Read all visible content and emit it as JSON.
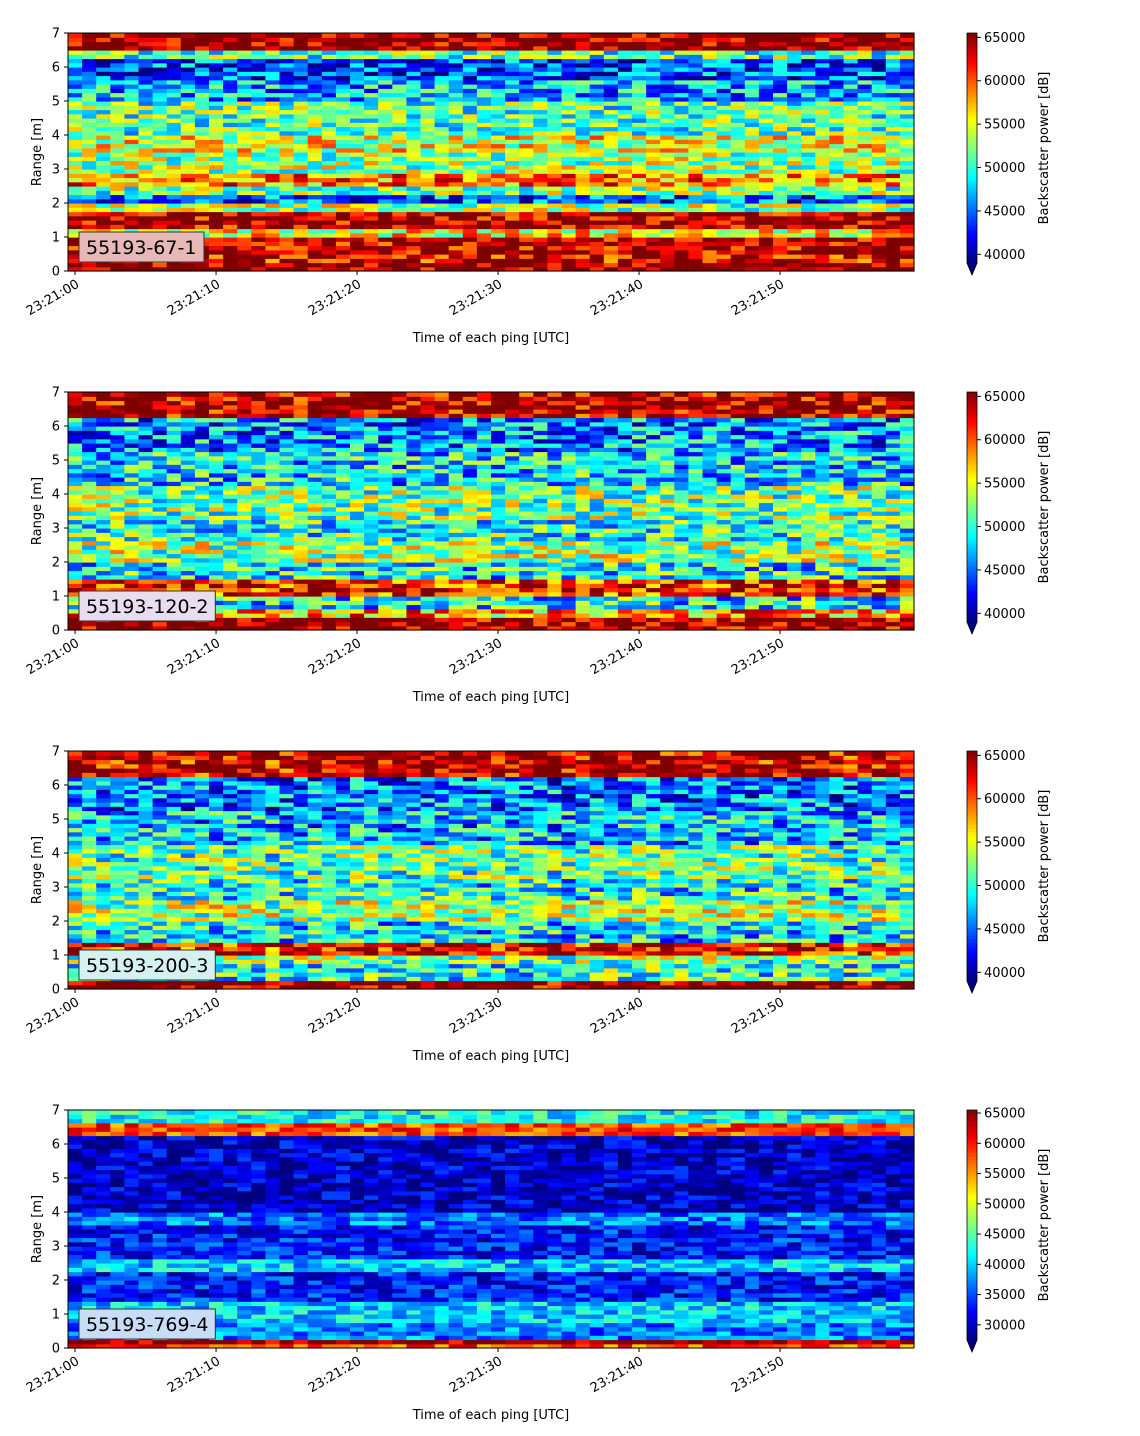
{
  "chart_data": [
    {
      "type": "heatmap",
      "label": "55193-67-1",
      "label_bg": "#e6b8b8",
      "xlabel": "Time of each ping [UTC]",
      "ylabel": "Range [m]",
      "xticks": [
        "23:21:00",
        "23:21:10",
        "23:21:20",
        "23:21:30",
        "23:21:40",
        "23:21:50"
      ],
      "yticks": [
        0,
        1,
        2,
        3,
        4,
        5,
        6,
        7
      ],
      "xlim_seconds": [
        -0.5,
        59.5
      ],
      "ylim": [
        0,
        7
      ],
      "colorbar": {
        "label": "Backscatter power [dB]",
        "ticks": [
          40000,
          45000,
          50000,
          55000,
          60000,
          65000
        ],
        "vmin": 39000,
        "vmax": 65500,
        "extend": "min",
        "cmap": "jet"
      },
      "bands": [
        {
          "y": [
            0.0,
            0.25
          ],
          "v": 65500
        },
        {
          "y": [
            0.25,
            0.5
          ],
          "v": 63000
        },
        {
          "y": [
            0.5,
            1.05
          ],
          "v": 64500
        },
        {
          "y": [
            1.05,
            1.25
          ],
          "v": 56000
        },
        {
          "y": [
            1.25,
            1.8
          ],
          "v": 64500
        },
        {
          "y": [
            1.8,
            2.05
          ],
          "v": 53000
        },
        {
          "y": [
            2.05,
            2.3
          ],
          "v": 45000
        },
        {
          "y": [
            2.3,
            2.55
          ],
          "v": 52000
        },
        {
          "y": [
            2.55,
            2.9
          ],
          "v": 59000
        },
        {
          "y": [
            2.9,
            3.5
          ],
          "v": 53000
        },
        {
          "y": [
            3.5,
            4.0
          ],
          "v": 55000
        },
        {
          "y": [
            4.0,
            5.0
          ],
          "v": 51000
        },
        {
          "y": [
            5.0,
            5.6
          ],
          "v": 47000
        },
        {
          "y": [
            5.6,
            6.3
          ],
          "v": 44000
        },
        {
          "y": [
            6.3,
            6.5
          ],
          "v": 51000
        },
        {
          "y": [
            6.5,
            7.0
          ],
          "v": 65500
        }
      ],
      "noise": 6000
    },
    {
      "type": "heatmap",
      "label": "55193-120-2",
      "label_bg": "#e8dcef",
      "xlabel": "Time of each ping [UTC]",
      "ylabel": "Range [m]",
      "xticks": [
        "23:21:00",
        "23:21:10",
        "23:21:20",
        "23:21:30",
        "23:21:40",
        "23:21:50"
      ],
      "yticks": [
        0,
        1,
        2,
        3,
        4,
        5,
        6,
        7
      ],
      "xlim_seconds": [
        -0.5,
        59.5
      ],
      "ylim": [
        0,
        7
      ],
      "colorbar": {
        "label": "Backscatter power [dB]",
        "ticks": [
          40000,
          45000,
          50000,
          55000,
          60000,
          65000
        ],
        "vmin": 39000,
        "vmax": 65500,
        "extend": "min",
        "cmap": "jet"
      },
      "bands": [
        {
          "y": [
            0.0,
            0.35
          ],
          "v": 65500
        },
        {
          "y": [
            0.35,
            0.6
          ],
          "v": 58000
        },
        {
          "y": [
            0.6,
            1.0
          ],
          "v": 49000
        },
        {
          "y": [
            1.0,
            1.5
          ],
          "v": 62000
        },
        {
          "y": [
            1.5,
            2.0
          ],
          "v": 49000
        },
        {
          "y": [
            2.0,
            2.6
          ],
          "v": 53000
        },
        {
          "y": [
            2.6,
            3.2
          ],
          "v": 50000
        },
        {
          "y": [
            3.2,
            4.2
          ],
          "v": 52000
        },
        {
          "y": [
            4.2,
            5.2
          ],
          "v": 48000
        },
        {
          "y": [
            5.2,
            6.3
          ],
          "v": 46000
        },
        {
          "y": [
            6.3,
            7.0
          ],
          "v": 64500
        }
      ],
      "noise": 6500
    },
    {
      "type": "heatmap",
      "label": "55193-200-3",
      "label_bg": "#d4f1ef",
      "xlabel": "Time of each ping [UTC]",
      "ylabel": "Range [m]",
      "xticks": [
        "23:21:00",
        "23:21:10",
        "23:21:20",
        "23:21:30",
        "23:21:40",
        "23:21:50"
      ],
      "yticks": [
        0,
        1,
        2,
        3,
        4,
        5,
        6,
        7
      ],
      "xlim_seconds": [
        -0.5,
        59.5
      ],
      "ylim": [
        0,
        7
      ],
      "colorbar": {
        "label": "Backscatter power [dB]",
        "ticks": [
          40000,
          45000,
          50000,
          55000,
          60000,
          65000
        ],
        "vmin": 39000,
        "vmax": 65500,
        "extend": "min",
        "cmap": "jet"
      },
      "bands": [
        {
          "y": [
            0.0,
            0.3
          ],
          "v": 65500
        },
        {
          "y": [
            0.3,
            0.7
          ],
          "v": 50000
        },
        {
          "y": [
            0.7,
            1.0
          ],
          "v": 52000
        },
        {
          "y": [
            1.0,
            1.4
          ],
          "v": 62000
        },
        {
          "y": [
            1.4,
            2.0
          ],
          "v": 48000
        },
        {
          "y": [
            2.0,
            2.6
          ],
          "v": 53000
        },
        {
          "y": [
            2.6,
            3.3
          ],
          "v": 49000
        },
        {
          "y": [
            3.3,
            4.2
          ],
          "v": 51000
        },
        {
          "y": [
            4.2,
            5.2
          ],
          "v": 47000
        },
        {
          "y": [
            5.2,
            6.3
          ],
          "v": 45000
        },
        {
          "y": [
            6.3,
            7.0
          ],
          "v": 63500
        }
      ],
      "noise": 6500
    },
    {
      "type": "heatmap",
      "label": "55193-769-4",
      "label_bg": "#c9dcf6",
      "xlabel": "Time of each ping [UTC]",
      "ylabel": "Range [m]",
      "xticks": [
        "23:21:00",
        "23:21:10",
        "23:21:20",
        "23:21:30",
        "23:21:40",
        "23:21:50"
      ],
      "yticks": [
        0,
        1,
        2,
        3,
        4,
        5,
        6,
        7
      ],
      "xlim_seconds": [
        -0.5,
        59.5
      ],
      "ylim": [
        0,
        7
      ],
      "colorbar": {
        "label": "Backscatter power [dB]",
        "ticks": [
          30000,
          35000,
          40000,
          45000,
          50000,
          55000,
          60000,
          65000
        ],
        "vmin": 27500,
        "vmax": 65500,
        "extend": "min",
        "cmap": "jet"
      },
      "bands": [
        {
          "y": [
            0.0,
            0.15
          ],
          "v": 58000
        },
        {
          "y": [
            0.15,
            0.3
          ],
          "v": 64000
        },
        {
          "y": [
            0.3,
            0.8
          ],
          "v": 37000
        },
        {
          "y": [
            0.8,
            1.4
          ],
          "v": 40000
        },
        {
          "y": [
            1.4,
            2.2
          ],
          "v": 33000
        },
        {
          "y": [
            2.2,
            2.6
          ],
          "v": 40000
        },
        {
          "y": [
            2.6,
            3.6
          ],
          "v": 33000
        },
        {
          "y": [
            3.6,
            4.0
          ],
          "v": 37000
        },
        {
          "y": [
            4.0,
            6.2
          ],
          "v": 30000
        },
        {
          "y": [
            6.2,
            6.6
          ],
          "v": 58000
        },
        {
          "y": [
            6.6,
            7.0
          ],
          "v": 42000
        }
      ],
      "noise": 5000
    }
  ]
}
